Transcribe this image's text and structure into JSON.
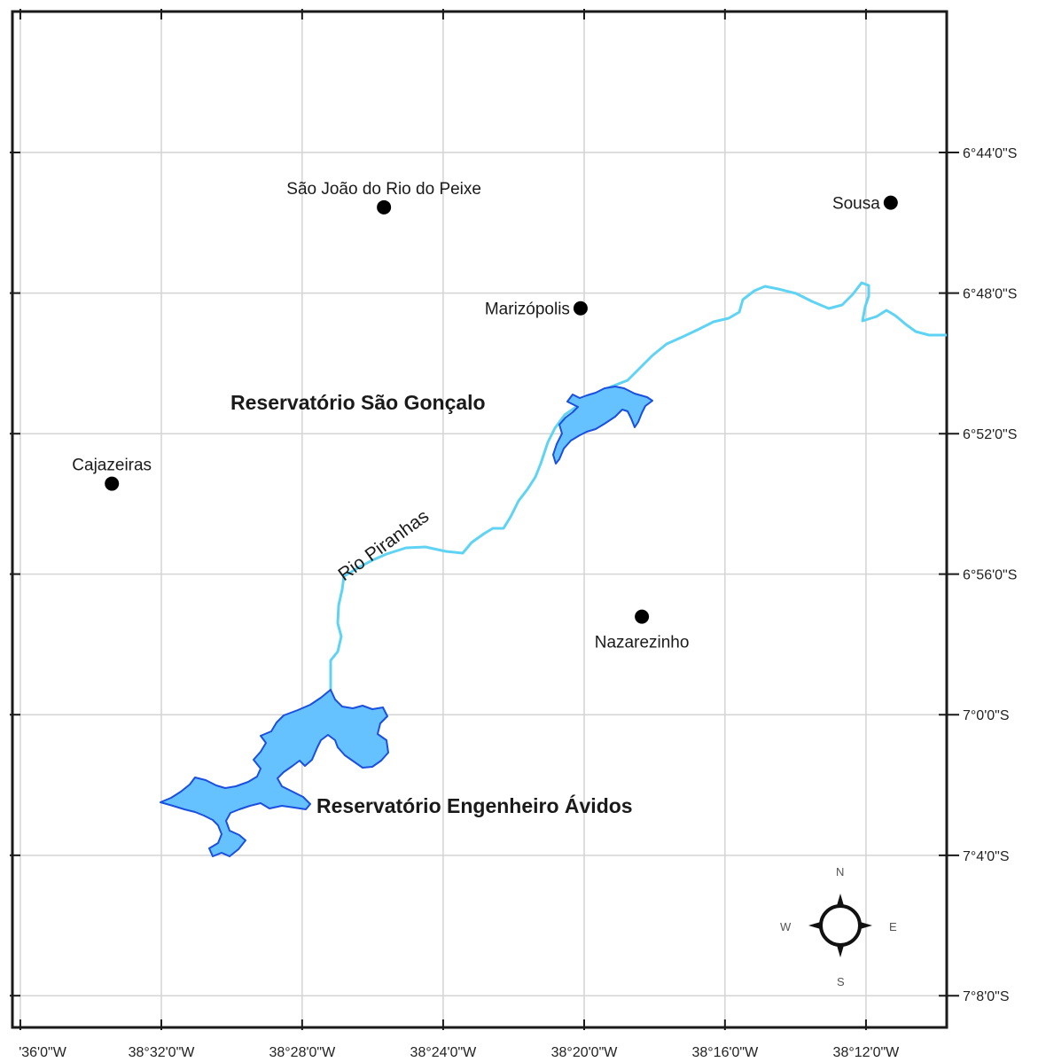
{
  "map": {
    "grid": {
      "longitudes": [
        {
          "value": -38.6,
          "label": "'36'0\"W"
        },
        {
          "value": -38.5333,
          "label": "38°32'0\"W"
        },
        {
          "value": -38.4667,
          "label": "38°28'0\"W"
        },
        {
          "value": -38.4,
          "label": "38°24'0\"W"
        },
        {
          "value": -38.3333,
          "label": "38°20'0\"W"
        },
        {
          "value": -38.2667,
          "label": "38°16'0\"W"
        },
        {
          "value": -38.2,
          "label": "38°12'0\"W"
        }
      ],
      "latitudes": [
        {
          "value": -6.7333,
          "label": "6°44'0\"S"
        },
        {
          "value": -6.8,
          "label": "6°48'0\"S"
        },
        {
          "value": -6.8667,
          "label": "6°52'0\"S"
        },
        {
          "value": -6.9333,
          "label": "6°56'0\"S"
        },
        {
          "value": -7.0,
          "label": "7°0'0\"S"
        },
        {
          "value": -7.0667,
          "label": "7°4'0\"S"
        },
        {
          "value": -7.1333,
          "label": "7°8'0\"S"
        }
      ]
    },
    "cities": [
      {
        "name": "São João do Rio do Peixe",
        "lon": -38.428,
        "lat": -6.7593,
        "label_pos": "above"
      },
      {
        "name": "Sousa",
        "lon": -38.1883,
        "lat": -6.7571,
        "label_pos": "left"
      },
      {
        "name": "Marizópolis",
        "lon": -38.335,
        "lat": -6.8072,
        "label_pos": "left"
      },
      {
        "name": "Cajazeiras",
        "lon": -38.5567,
        "lat": -6.8904,
        "label_pos": "above"
      },
      {
        "name": "Nazarezinho",
        "lon": -38.306,
        "lat": -6.9535,
        "label_pos": "below"
      }
    ],
    "features": {
      "reservoir_north": "Reservatório São Gonçalo",
      "reservoir_south": "Reservatório Engenheiro Ávidos",
      "river": "Rio Piranhas"
    },
    "compass": {
      "n": "N",
      "s": "S",
      "e": "E",
      "w": "W"
    },
    "colors": {
      "river": "#5fd3f3",
      "reservoir_fill": "#66c2ff",
      "reservoir_edge": "#1a4fe0",
      "grid": "#d4d4d4",
      "frame": "#1a1a1a",
      "city": "#000000"
    }
  }
}
